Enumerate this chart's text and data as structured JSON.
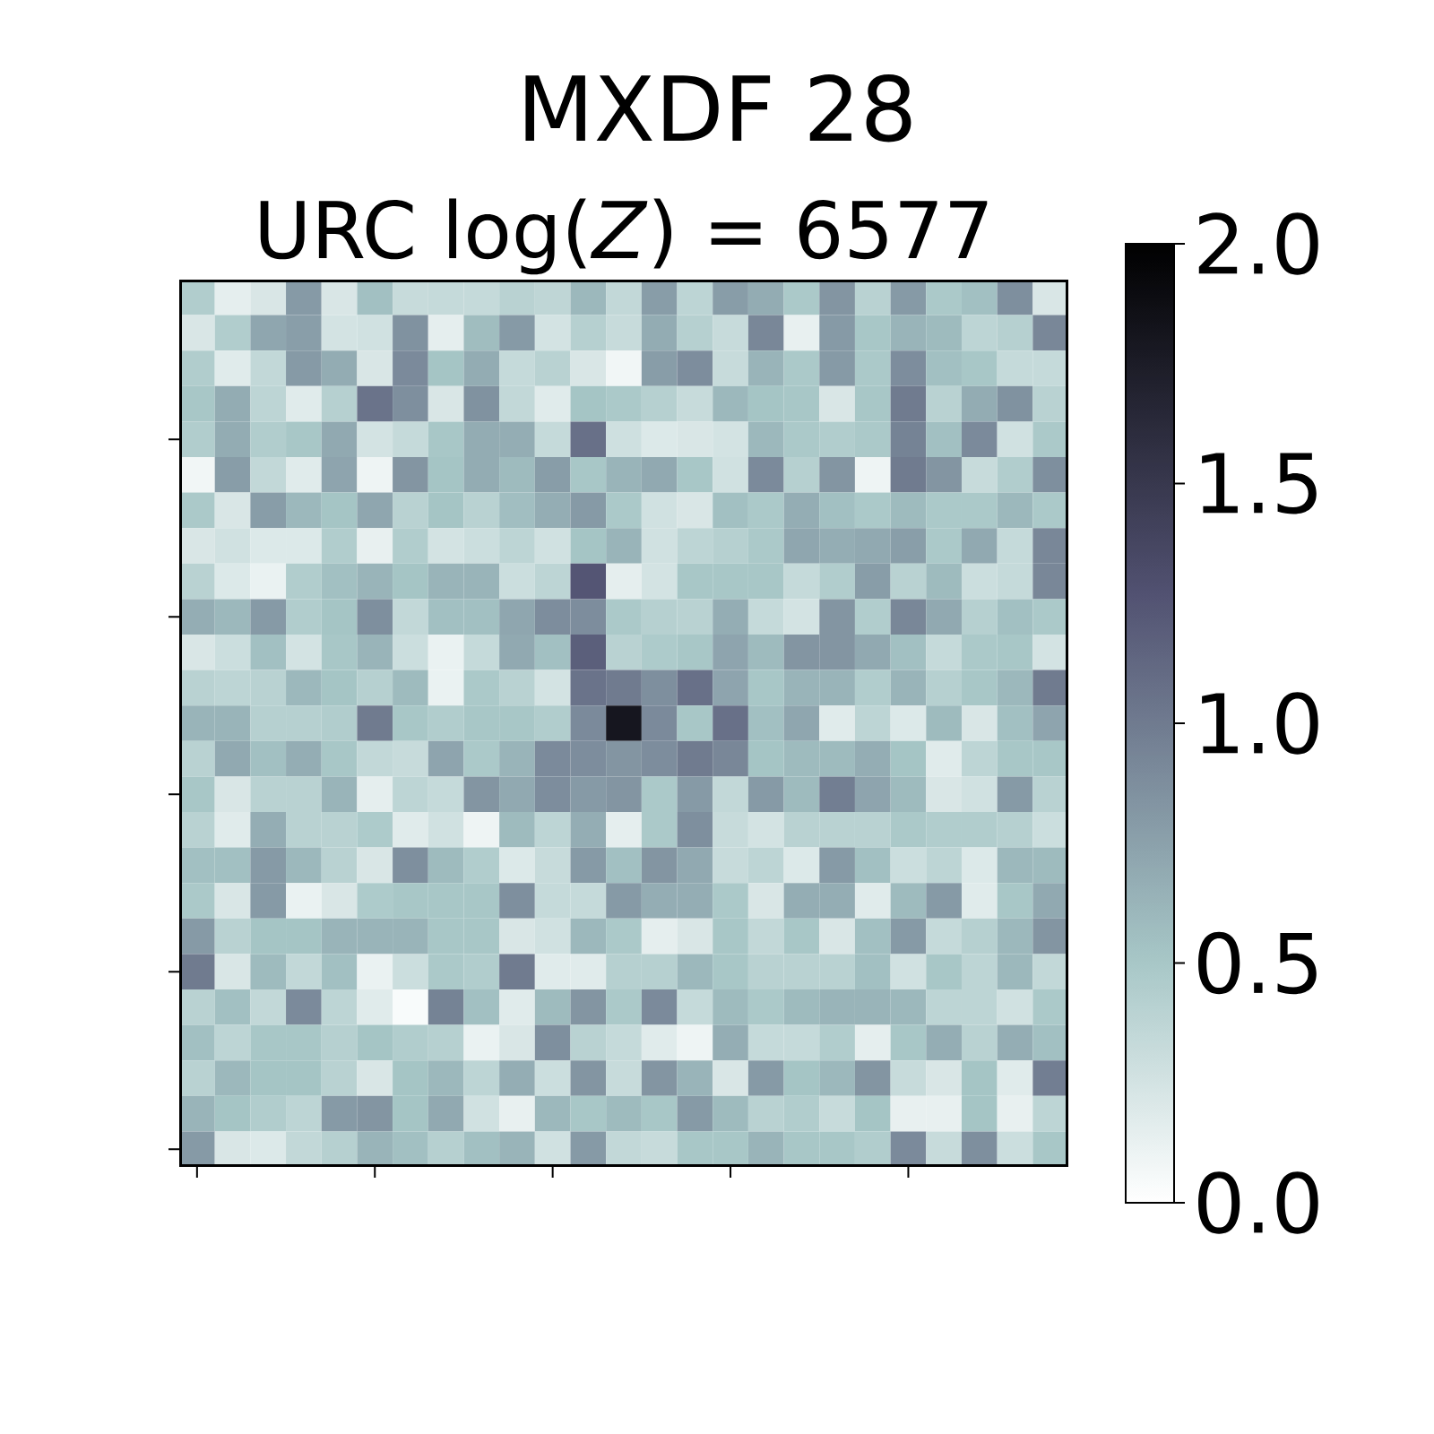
{
  "chart_data": {
    "type": "heatmap",
    "title": "MXDF 28",
    "subtitle": "URC log(*Z*) = 6577",
    "categories": [
      null,
      null,
      null,
      null,
      null,
      null,
      null,
      null,
      null,
      null,
      null,
      null,
      null,
      null,
      null,
      null,
      null,
      null,
      null,
      null,
      null,
      null,
      null,
      null,
      null
    ],
    "y_categories": [
      null,
      null,
      null,
      null,
      null,
      null,
      null,
      null,
      null,
      null,
      null,
      null,
      null,
      null,
      null,
      null,
      null,
      null,
      null,
      null,
      null,
      null,
      null,
      null,
      null
    ],
    "cells": [
      [
        0.45,
        0.15,
        0.22,
        0.8,
        0.22,
        0.55,
        0.32,
        0.33,
        0.33,
        0.4,
        0.37,
        0.6,
        0.35,
        0.78,
        0.38,
        0.78,
        0.68,
        0.48,
        0.83,
        0.4,
        0.8,
        0.48,
        0.55,
        0.87,
        0.22
      ],
      [
        0.22,
        0.45,
        0.72,
        0.77,
        0.25,
        0.27,
        0.85,
        0.15,
        0.57,
        0.8,
        0.25,
        0.42,
        0.32,
        0.68,
        0.42,
        0.32,
        0.92,
        0.13,
        0.8,
        0.5,
        0.63,
        0.58,
        0.38,
        0.42,
        0.92
      ],
      [
        0.45,
        0.18,
        0.35,
        0.8,
        0.68,
        0.22,
        0.9,
        0.52,
        0.68,
        0.33,
        0.4,
        0.22,
        0.08,
        0.78,
        0.88,
        0.32,
        0.63,
        0.48,
        0.8,
        0.48,
        0.88,
        0.55,
        0.5,
        0.33,
        0.33
      ],
      [
        0.5,
        0.68,
        0.38,
        0.18,
        0.42,
        1.05,
        0.87,
        0.22,
        0.85,
        0.35,
        0.18,
        0.52,
        0.48,
        0.42,
        0.32,
        0.6,
        0.52,
        0.5,
        0.22,
        0.5,
        1.0,
        0.4,
        0.68,
        0.85,
        0.4
      ],
      [
        0.45,
        0.68,
        0.45,
        0.5,
        0.7,
        0.25,
        0.33,
        0.5,
        0.68,
        0.67,
        0.33,
        1.07,
        0.28,
        0.2,
        0.22,
        0.25,
        0.6,
        0.48,
        0.45,
        0.48,
        0.95,
        0.55,
        0.9,
        0.27,
        0.48
      ],
      [
        0.08,
        0.78,
        0.35,
        0.18,
        0.73,
        0.1,
        0.83,
        0.52,
        0.68,
        0.58,
        0.78,
        0.5,
        0.63,
        0.7,
        0.5,
        0.27,
        0.9,
        0.42,
        0.83,
        0.1,
        1.0,
        0.83,
        0.32,
        0.45,
        0.87
      ],
      [
        0.48,
        0.22,
        0.78,
        0.6,
        0.52,
        0.72,
        0.4,
        0.52,
        0.4,
        0.56,
        0.67,
        0.8,
        0.48,
        0.27,
        0.22,
        0.55,
        0.48,
        0.67,
        0.55,
        0.48,
        0.58,
        0.48,
        0.48,
        0.6,
        0.48
      ],
      [
        0.22,
        0.27,
        0.2,
        0.2,
        0.45,
        0.13,
        0.45,
        0.25,
        0.3,
        0.38,
        0.27,
        0.52,
        0.63,
        0.27,
        0.38,
        0.42,
        0.48,
        0.72,
        0.67,
        0.7,
        0.77,
        0.48,
        0.7,
        0.33,
        0.92
      ],
      [
        0.4,
        0.2,
        0.12,
        0.45,
        0.55,
        0.63,
        0.52,
        0.63,
        0.63,
        0.3,
        0.38,
        1.25,
        0.15,
        0.25,
        0.5,
        0.5,
        0.5,
        0.33,
        0.45,
        0.78,
        0.4,
        0.58,
        0.3,
        0.33,
        0.92
      ],
      [
        0.67,
        0.6,
        0.8,
        0.45,
        0.52,
        0.87,
        0.35,
        0.55,
        0.55,
        0.72,
        0.88,
        0.88,
        0.48,
        0.42,
        0.4,
        0.67,
        0.33,
        0.25,
        0.83,
        0.45,
        0.92,
        0.7,
        0.42,
        0.55,
        0.48
      ],
      [
        0.22,
        0.3,
        0.55,
        0.25,
        0.5,
        0.63,
        0.3,
        0.12,
        0.33,
        0.7,
        0.55,
        1.18,
        0.4,
        0.47,
        0.5,
        0.73,
        0.58,
        0.83,
        0.83,
        0.7,
        0.55,
        0.33,
        0.48,
        0.5,
        0.25
      ],
      [
        0.4,
        0.38,
        0.4,
        0.6,
        0.52,
        0.42,
        0.58,
        0.12,
        0.48,
        0.4,
        0.25,
        1.05,
        1.0,
        0.87,
        1.07,
        0.73,
        0.5,
        0.63,
        0.63,
        0.45,
        0.63,
        0.42,
        0.5,
        0.6,
        1.0
      ],
      [
        0.63,
        0.63,
        0.42,
        0.42,
        0.45,
        1.0,
        0.5,
        0.45,
        0.5,
        0.5,
        0.45,
        0.9,
        1.8,
        0.9,
        0.5,
        1.07,
        0.55,
        0.72,
        0.18,
        0.38,
        0.2,
        0.58,
        0.22,
        0.55,
        0.73
      ],
      [
        0.4,
        0.7,
        0.55,
        0.67,
        0.5,
        0.35,
        0.32,
        0.73,
        0.48,
        0.63,
        0.9,
        0.88,
        0.83,
        0.88,
        1.0,
        0.92,
        0.52,
        0.58,
        0.58,
        0.67,
        0.52,
        0.18,
        0.38,
        0.5,
        0.5
      ],
      [
        0.5,
        0.22,
        0.4,
        0.4,
        0.63,
        0.15,
        0.38,
        0.33,
        0.83,
        0.7,
        0.88,
        0.8,
        0.83,
        0.48,
        0.8,
        0.35,
        0.8,
        0.58,
        0.98,
        0.73,
        0.58,
        0.22,
        0.27,
        0.8,
        0.4
      ],
      [
        0.4,
        0.18,
        0.67,
        0.4,
        0.4,
        0.47,
        0.18,
        0.27,
        0.1,
        0.58,
        0.38,
        0.67,
        0.15,
        0.48,
        0.87,
        0.32,
        0.25,
        0.4,
        0.4,
        0.4,
        0.48,
        0.45,
        0.45,
        0.42,
        0.3
      ],
      [
        0.55,
        0.55,
        0.8,
        0.6,
        0.4,
        0.22,
        0.87,
        0.58,
        0.45,
        0.2,
        0.32,
        0.8,
        0.55,
        0.83,
        0.7,
        0.32,
        0.38,
        0.2,
        0.8,
        0.55,
        0.3,
        0.38,
        0.2,
        0.6,
        0.58
      ],
      [
        0.48,
        0.22,
        0.8,
        0.12,
        0.22,
        0.47,
        0.5,
        0.5,
        0.5,
        0.87,
        0.33,
        0.33,
        0.8,
        0.67,
        0.67,
        0.48,
        0.22,
        0.67,
        0.67,
        0.18,
        0.58,
        0.8,
        0.18,
        0.5,
        0.7
      ],
      [
        0.8,
        0.4,
        0.52,
        0.52,
        0.63,
        0.63,
        0.63,
        0.5,
        0.5,
        0.22,
        0.27,
        0.6,
        0.48,
        0.15,
        0.22,
        0.5,
        0.35,
        0.5,
        0.22,
        0.55,
        0.8,
        0.33,
        0.42,
        0.6,
        0.83
      ],
      [
        1.0,
        0.22,
        0.58,
        0.35,
        0.55,
        0.12,
        0.3,
        0.48,
        0.45,
        1.0,
        0.18,
        0.18,
        0.42,
        0.42,
        0.6,
        0.5,
        0.4,
        0.4,
        0.4,
        0.55,
        0.27,
        0.5,
        0.38,
        0.6,
        0.35
      ],
      [
        0.4,
        0.55,
        0.35,
        0.9,
        0.38,
        0.18,
        0.04,
        0.95,
        0.55,
        0.18,
        0.58,
        0.83,
        0.48,
        0.9,
        0.33,
        0.58,
        0.48,
        0.58,
        0.63,
        0.63,
        0.6,
        0.38,
        0.38,
        0.27,
        0.48
      ],
      [
        0.55,
        0.38,
        0.5,
        0.5,
        0.42,
        0.52,
        0.45,
        0.42,
        0.12,
        0.22,
        0.87,
        0.4,
        0.33,
        0.18,
        0.1,
        0.67,
        0.33,
        0.33,
        0.45,
        0.15,
        0.5,
        0.67,
        0.4,
        0.67,
        0.55
      ],
      [
        0.4,
        0.6,
        0.52,
        0.52,
        0.4,
        0.22,
        0.52,
        0.6,
        0.38,
        0.67,
        0.3,
        0.83,
        0.32,
        0.83,
        0.63,
        0.22,
        0.8,
        0.52,
        0.6,
        0.83,
        0.32,
        0.22,
        0.52,
        0.18,
        0.98
      ],
      [
        0.63,
        0.52,
        0.45,
        0.38,
        0.8,
        0.83,
        0.52,
        0.7,
        0.27,
        0.13,
        0.6,
        0.5,
        0.58,
        0.5,
        0.8,
        0.58,
        0.4,
        0.45,
        0.32,
        0.52,
        0.13,
        0.13,
        0.52,
        0.13,
        0.38
      ],
      [
        0.8,
        0.22,
        0.2,
        0.35,
        0.42,
        0.63,
        0.55,
        0.42,
        0.55,
        0.63,
        0.27,
        0.8,
        0.35,
        0.32,
        0.5,
        0.5,
        0.63,
        0.5,
        0.5,
        0.45,
        0.9,
        0.32,
        0.87,
        0.3,
        0.5
      ]
    ],
    "clim": [
      0,
      2
    ],
    "cticks": [
      {
        "value": 0,
        "label": "0.0"
      },
      0.5,
      {
        "value": 1,
        "label": "1.0"
      },
      1.5,
      {
        "value": 2,
        "label": "2.0"
      }
    ]
  }
}
